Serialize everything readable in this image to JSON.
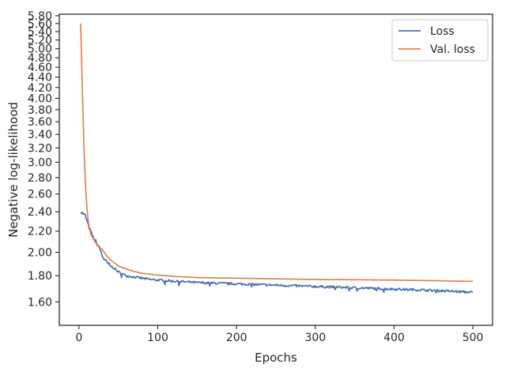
{
  "chart_data": {
    "type": "line",
    "title": "",
    "xlabel": "Epochs",
    "ylabel": "Negative log-likelihood",
    "y_scale": "log",
    "xlim": [
      -25,
      525
    ],
    "ylim": [
      1.44,
      5.84
    ],
    "x_ticks": [
      0,
      100,
      200,
      300,
      400,
      500
    ],
    "x_tick_labels": [
      "0",
      "100",
      "200",
      "300",
      "400",
      "500"
    ],
    "y_ticks": [
      1.6,
      1.8,
      2.0,
      2.2,
      2.4,
      2.6,
      2.8,
      3.0,
      3.2,
      3.4,
      3.6,
      3.8,
      4.0,
      4.2,
      4.4,
      4.6,
      4.8,
      5.0,
      5.2,
      5.4,
      5.6,
      5.8
    ],
    "y_tick_labels": [
      "1.60",
      "1.80",
      "2.00",
      "2.20",
      "2.40",
      "2.60",
      "2.80",
      "3.00",
      "3.20",
      "3.40",
      "3.60",
      "3.80",
      "4.00",
      "4.20",
      "4.40",
      "4.60",
      "4.80",
      "5.00",
      "5.20",
      "5.40",
      "5.60",
      "5.80"
    ],
    "grid": false,
    "legend_position": "top-right",
    "series": [
      {
        "name": "Loss",
        "color": "#4c72b0",
        "noise": true,
        "x": [
          2,
          8,
          12,
          18,
          22,
          26,
          30,
          35,
          40,
          45,
          50,
          60,
          70,
          80,
          90,
          100,
          125,
          150,
          200,
          250,
          300,
          350,
          400,
          450,
          500
        ],
        "y": [
          2.4,
          2.36,
          2.25,
          2.14,
          2.09,
          2.04,
          1.96,
          1.91,
          1.88,
          1.86,
          1.83,
          1.8,
          1.79,
          1.78,
          1.77,
          1.765,
          1.755,
          1.745,
          1.735,
          1.725,
          1.715,
          1.705,
          1.695,
          1.685,
          1.67
        ]
      },
      {
        "name": "Val. loss",
        "color": "#dd8452",
        "noise": false,
        "x": [
          2,
          4,
          6,
          8,
          10,
          12,
          15,
          20,
          25,
          30,
          35,
          40,
          50,
          60,
          70,
          80,
          100,
          120,
          150,
          200,
          250,
          300,
          350,
          400,
          450,
          500
        ],
        "y": [
          5.6,
          4.3,
          3.3,
          2.75,
          2.45,
          2.28,
          2.17,
          2.1,
          2.05,
          2.02,
          1.97,
          1.93,
          1.88,
          1.855,
          1.835,
          1.82,
          1.805,
          1.795,
          1.785,
          1.78,
          1.775,
          1.77,
          1.768,
          1.765,
          1.76,
          1.755
        ]
      }
    ]
  }
}
